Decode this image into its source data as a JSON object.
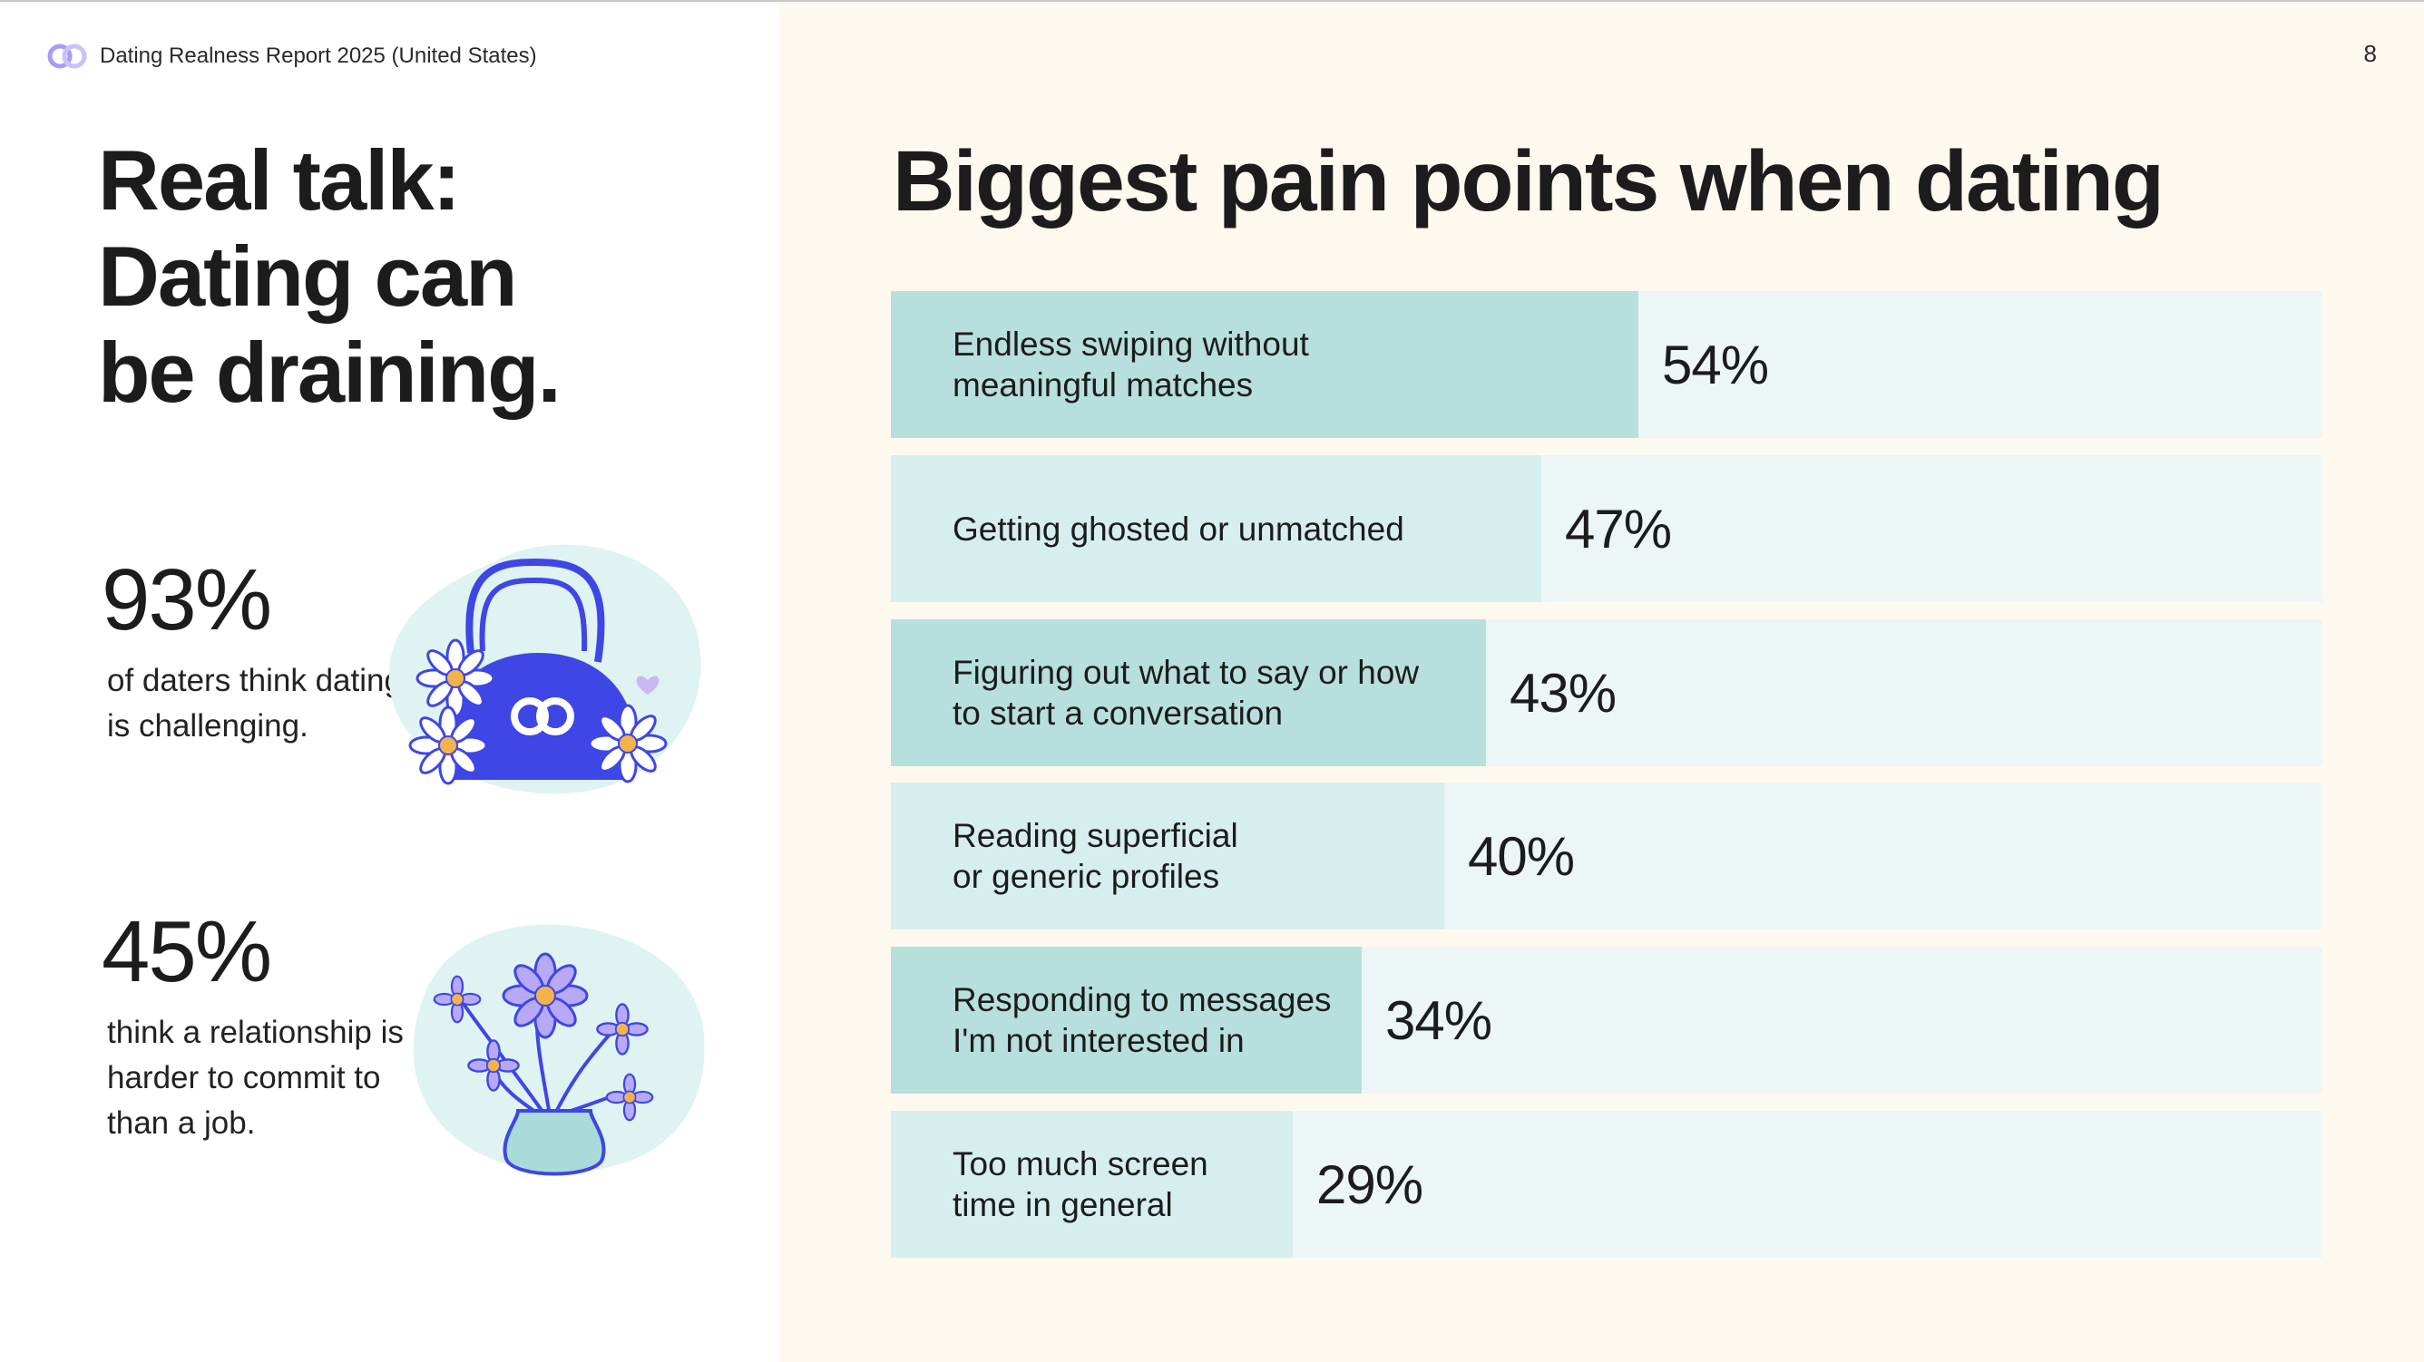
{
  "header": {
    "report_title": "Dating Realness Report 2025 (United States)",
    "page_number": "8"
  },
  "left": {
    "title_lines": [
      "Real talk:",
      "Dating can",
      "be draining."
    ],
    "stats": [
      {
        "value": "93%",
        "text": "of daters think dating is challenging."
      },
      {
        "value": "45%",
        "text": "think a relationship is harder to commit to than a job."
      }
    ]
  },
  "colors": {
    "bar_dark": "#b7dfdd",
    "bar_light": "#d7eeee",
    "bar_track": "#edf6f6",
    "right_background": "#fef9ef",
    "accent_blue": "#3f46e6",
    "flower_purple": "#a99cf4",
    "blob_mint": "#dff3f2"
  },
  "chart_data": {
    "type": "bar",
    "orientation": "horizontal",
    "title": "Biggest pain points when dating",
    "xlim": [
      0,
      100
    ],
    "unit": "%",
    "categories": [
      "Endless swiping without\nmeaningful matches",
      "Getting ghosted or unmatched",
      "Figuring out what to say or how\nto start a conversation",
      "Reading superficial\nor generic profiles",
      "Responding to messages\nI'm not interested in",
      "Too much screen\ntime in general"
    ],
    "values": [
      54,
      47,
      43,
      40,
      34,
      29
    ],
    "value_labels": [
      "54%",
      "47%",
      "43%",
      "40%",
      "34%",
      "29%"
    ]
  }
}
